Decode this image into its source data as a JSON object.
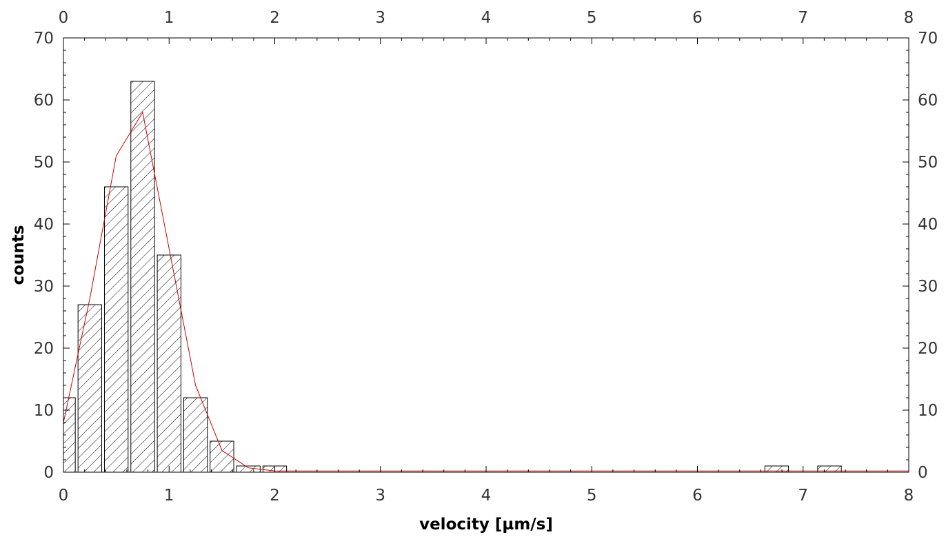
{
  "chart_data": {
    "type": "bar",
    "xlabel": "velocity [µm/s]",
    "ylabel": "counts",
    "xlim": [
      0,
      8
    ],
    "ylim": [
      0,
      70
    ],
    "xticks": [
      0,
      1,
      2,
      3,
      4,
      5,
      6,
      7,
      8
    ],
    "yticks": [
      0,
      10,
      20,
      30,
      40,
      50,
      60,
      70
    ],
    "x_tick_labels": [
      "0",
      "1",
      "2",
      "3",
      "4",
      "5",
      "6",
      "7",
      "8"
    ],
    "y_tick_labels": [
      "0",
      "10",
      "20",
      "30",
      "40",
      "50",
      "60",
      "70"
    ],
    "mirror_axes": true,
    "grid": false,
    "bin_width": 0.25,
    "bar_pattern": "diagonal-hatch",
    "bars": [
      {
        "x0": -0.125,
        "x1": 0.125,
        "count": 12
      },
      {
        "x0": 0.125,
        "x1": 0.375,
        "count": 27
      },
      {
        "x0": 0.375,
        "x1": 0.625,
        "count": 46
      },
      {
        "x0": 0.625,
        "x1": 0.875,
        "count": 63
      },
      {
        "x0": 0.875,
        "x1": 1.125,
        "count": 35
      },
      {
        "x0": 1.125,
        "x1": 1.375,
        "count": 12
      },
      {
        "x0": 1.375,
        "x1": 1.625,
        "count": 5
      },
      {
        "x0": 1.625,
        "x1": 1.875,
        "count": 1
      },
      {
        "x0": 1.875,
        "x1": 2.125,
        "count": 1
      },
      {
        "x0": 6.625,
        "x1": 6.875,
        "count": 1
      },
      {
        "x0": 7.125,
        "x1": 7.375,
        "count": 1
      }
    ],
    "fit": {
      "color": "#cc0000",
      "x": [
        0.0,
        0.25,
        0.5,
        0.75,
        1.0,
        1.25,
        1.5,
        1.75,
        2.0,
        2.5,
        3,
        4,
        5,
        6,
        7,
        8
      ],
      "y": [
        8,
        28,
        51,
        58,
        36,
        14,
        3.5,
        0.7,
        0.2,
        0.2,
        0.2,
        0.2,
        0.2,
        0.2,
        0.2,
        0.2
      ]
    }
  }
}
